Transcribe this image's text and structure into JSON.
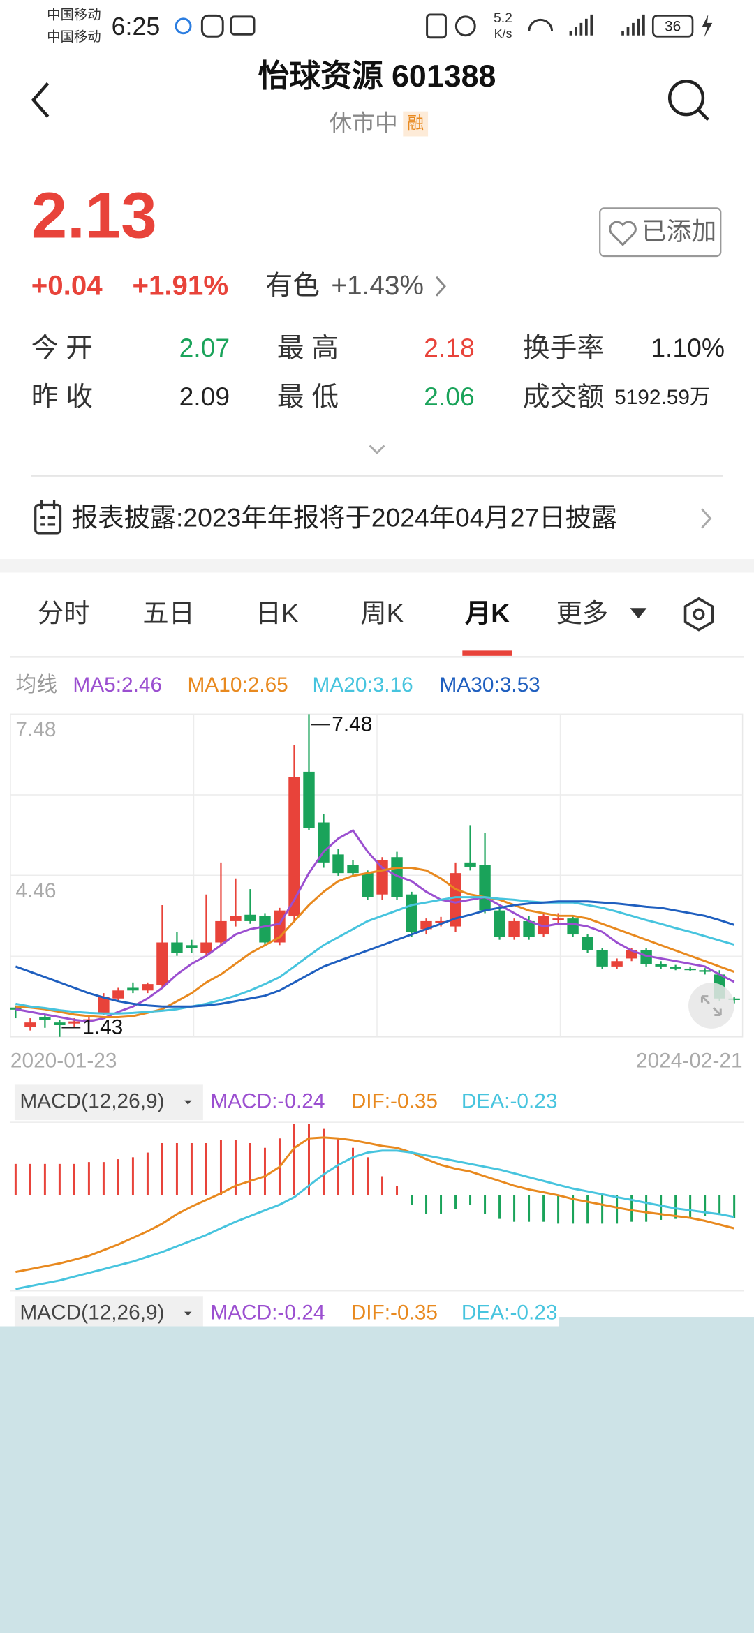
{
  "status_bar": {
    "carrier_1": "中国移动",
    "carrier_2": "中国移动",
    "time": "6:25",
    "speed": "5.2",
    "speed_unit": "K/s",
    "battery": "36"
  },
  "header": {
    "title": "怡球资源 601388",
    "status": "休市中",
    "badge": "融"
  },
  "quote": {
    "price": "2.13",
    "change": "+0.04",
    "change_pct": "+1.91%",
    "sector": "有色",
    "sector_change": "+1.43%",
    "watch_button": "已添加"
  },
  "stats": [
    [
      {
        "label": "今 开",
        "value": "2.07",
        "color": "#1aa35a"
      },
      {
        "label": "最 高",
        "value": "2.18",
        "color": "#e8433a"
      },
      {
        "label": "换手率",
        "value": "1.10%",
        "color": "#222222"
      }
    ],
    [
      {
        "label": "昨 收",
        "value": "2.09",
        "color": "#222222"
      },
      {
        "label": "最 低",
        "value": "2.06",
        "color": "#1aa35a"
      },
      {
        "label": "成交额",
        "value": "5192.59万",
        "color": "#222222"
      }
    ]
  ],
  "report": "报表披露:2023年年报将于2024年04月27日披露",
  "tabs": {
    "items": [
      "分时",
      "五日",
      "日K",
      "周K",
      "月K",
      "更多"
    ],
    "selected": 4
  },
  "chart_data": [
    {
      "type": "candlestick",
      "ma_label": "均线",
      "categories": [
        "2020-01-23",
        null,
        null,
        null,
        null,
        null,
        null,
        null,
        null,
        null,
        null,
        null,
        null,
        null,
        null,
        null,
        null,
        null,
        null,
        null,
        null,
        null,
        null,
        null,
        null,
        null,
        null,
        null,
        null,
        null,
        null,
        null,
        null,
        null,
        null,
        null,
        null,
        null,
        null,
        null,
        null,
        null,
        null,
        null,
        null,
        null,
        null,
        null,
        null,
        "2024-02-21"
      ],
      "open": [
        1.98,
        1.62,
        1.8,
        1.7,
        1.68,
        1.72,
        1.88,
        2.15,
        2.35,
        2.3,
        2.4,
        3.2,
        3.15,
        3.0,
        3.2,
        3.6,
        3.72,
        3.7,
        3.2,
        3.7,
        6.4,
        5.45,
        4.85,
        4.65,
        4.5,
        4.1,
        4.8,
        4.1,
        3.45,
        3.58,
        3.5,
        4.7,
        4.65,
        3.8,
        3.3,
        3.6,
        3.35,
        3.62,
        3.65,
        3.3,
        3.05,
        2.75,
        2.9,
        3.05,
        2.8,
        2.74,
        2.71,
        2.68,
        2.6,
        2.15
      ],
      "high": [
        2.02,
        1.78,
        1.84,
        1.75,
        1.78,
        1.8,
        2.25,
        2.35,
        2.45,
        2.45,
        3.9,
        3.4,
        3.25,
        4.1,
        4.7,
        4.4,
        4.2,
        3.75,
        3.85,
        6.9,
        7.48,
        5.6,
        4.95,
        4.75,
        4.55,
        4.8,
        4.9,
        4.15,
        3.65,
        3.68,
        4.7,
        5.4,
        5.25,
        3.9,
        3.65,
        3.7,
        3.75,
        3.75,
        3.7,
        3.35,
        3.1,
        2.9,
        3.1,
        3.1,
        2.85,
        2.78,
        2.75,
        2.72,
        2.68,
        2.18
      ],
      "low": [
        1.78,
        1.55,
        1.6,
        1.43,
        1.62,
        1.66,
        1.84,
        2.1,
        2.25,
        2.25,
        2.35,
        2.95,
        3.0,
        2.95,
        3.15,
        3.5,
        3.55,
        3.15,
        3.15,
        3.6,
        5.3,
        4.6,
        4.45,
        4.45,
        4.0,
        4.0,
        4.0,
        3.3,
        3.35,
        3.5,
        3.4,
        4.55,
        3.75,
        3.25,
        3.25,
        3.25,
        3.3,
        3.55,
        3.3,
        3.0,
        2.7,
        2.7,
        2.85,
        2.75,
        2.7,
        2.68,
        2.66,
        2.6,
        2.1,
        2.06
      ],
      "close": [
        1.94,
        1.7,
        1.75,
        1.65,
        1.72,
        1.76,
        2.18,
        2.3,
        2.3,
        2.42,
        3.2,
        3.0,
        3.1,
        3.2,
        3.6,
        3.7,
        3.6,
        3.2,
        3.8,
        6.3,
        5.35,
        4.7,
        4.5,
        4.5,
        4.05,
        4.75,
        4.05,
        3.4,
        3.6,
        3.6,
        4.5,
        4.62,
        3.8,
        3.3,
        3.6,
        3.3,
        3.7,
        3.65,
        3.35,
        3.05,
        2.75,
        2.85,
        3.05,
        2.8,
        2.75,
        2.72,
        2.69,
        2.65,
        2.15,
        2.13
      ],
      "up_color": "#e8433a",
      "down_color": "#1aa35a",
      "series": [
        {
          "name": "MA5:2.46",
          "color": "#9b4fd0",
          "values": [
            1.95,
            1.9,
            1.85,
            1.8,
            1.75,
            1.72,
            1.78,
            1.9,
            2.0,
            2.15,
            2.35,
            2.6,
            2.8,
            2.95,
            3.15,
            3.35,
            3.45,
            3.5,
            3.55,
            4.0,
            4.5,
            4.9,
            5.15,
            5.3,
            4.9,
            4.6,
            4.45,
            4.35,
            4.15,
            4.0,
            3.95,
            4.0,
            4.05,
            3.9,
            3.75,
            3.6,
            3.5,
            3.55,
            3.55,
            3.5,
            3.4,
            3.2,
            3.05,
            2.95,
            2.9,
            2.85,
            2.8,
            2.75,
            2.6,
            2.46
          ]
        },
        {
          "name": "MA10:2.65",
          "color": "#e8891f",
          "values": [
            2.0,
            1.98,
            1.95,
            1.9,
            1.85,
            1.82,
            1.8,
            1.8,
            1.82,
            1.88,
            1.95,
            2.1,
            2.25,
            2.45,
            2.6,
            2.8,
            3.0,
            3.15,
            3.3,
            3.6,
            3.9,
            4.15,
            4.35,
            4.45,
            4.5,
            4.55,
            4.6,
            4.6,
            4.55,
            4.4,
            4.2,
            4.1,
            4.05,
            4.0,
            3.9,
            3.8,
            3.75,
            3.7,
            3.7,
            3.65,
            3.55,
            3.45,
            3.35,
            3.25,
            3.15,
            3.05,
            2.95,
            2.85,
            2.75,
            2.65
          ]
        },
        {
          "name": "MA20:3.16",
          "color": "#47c4de",
          "values": [
            2.05,
            2.0,
            1.97,
            1.93,
            1.9,
            1.88,
            1.87,
            1.87,
            1.88,
            1.9,
            1.92,
            1.95,
            2.0,
            2.05,
            2.12,
            2.2,
            2.3,
            2.42,
            2.55,
            2.75,
            2.95,
            3.15,
            3.3,
            3.45,
            3.6,
            3.7,
            3.8,
            3.9,
            3.95,
            4.0,
            4.05,
            4.05,
            4.05,
            4.02,
            4.0,
            3.97,
            3.95,
            3.95,
            3.95,
            3.9,
            3.85,
            3.78,
            3.7,
            3.62,
            3.55,
            3.47,
            3.4,
            3.32,
            3.24,
            3.16
          ]
        },
        {
          "name": "MA30:3.53",
          "color": "#1f5fbf",
          "values": [
            2.75,
            2.65,
            2.55,
            2.45,
            2.35,
            2.25,
            2.17,
            2.1,
            2.05,
            2.02,
            2.0,
            2.0,
            2.0,
            2.02,
            2.05,
            2.1,
            2.15,
            2.2,
            2.3,
            2.45,
            2.6,
            2.75,
            2.85,
            2.95,
            3.05,
            3.15,
            3.25,
            3.35,
            3.45,
            3.55,
            3.65,
            3.72,
            3.8,
            3.85,
            3.9,
            3.93,
            3.95,
            3.97,
            3.97,
            3.97,
            3.95,
            3.93,
            3.9,
            3.87,
            3.85,
            3.8,
            3.75,
            3.7,
            3.62,
            3.53
          ]
        }
      ],
      "ylim": [
        1.43,
        7.48
      ],
      "yticks": [
        7.48,
        4.46
      ],
      "high_label": 7.48,
      "low_label": 1.43,
      "grid": true
    },
    {
      "type": "macd",
      "title": "MACD(12,26,9)",
      "histogram": {
        "name": "MACD:-0.24",
        "color": "#9b4fd0",
        "up_color": "#e8433a",
        "down_color": "#1aa35a",
        "values": [
          0.33,
          0.33,
          0.33,
          0.33,
          0.33,
          0.35,
          0.35,
          0.38,
          0.4,
          0.45,
          0.55,
          0.55,
          0.55,
          0.55,
          0.58,
          0.58,
          0.55,
          0.5,
          0.6,
          0.75,
          0.75,
          0.7,
          0.6,
          0.5,
          0.4,
          0.2,
          0.1,
          -0.1,
          -0.2,
          -0.2,
          -0.15,
          -0.1,
          -0.2,
          -0.25,
          -0.28,
          -0.28,
          -0.28,
          -0.3,
          -0.3,
          -0.3,
          -0.3,
          -0.3,
          -0.28,
          -0.28,
          -0.26,
          -0.25,
          -0.24,
          -0.22,
          -0.2,
          -0.24
        ]
      },
      "series": [
        {
          "name": "DIF:-0.35",
          "color": "#e8891f",
          "values": [
            -0.81,
            -0.78,
            -0.75,
            -0.72,
            -0.68,
            -0.64,
            -0.58,
            -0.52,
            -0.45,
            -0.38,
            -0.3,
            -0.2,
            -0.12,
            -0.05,
            0.02,
            0.1,
            0.15,
            0.2,
            0.3,
            0.5,
            0.6,
            0.61,
            0.6,
            0.58,
            0.55,
            0.52,
            0.5,
            0.45,
            0.38,
            0.32,
            0.28,
            0.25,
            0.2,
            0.15,
            0.1,
            0.06,
            0.03,
            0.0,
            -0.04,
            -0.07,
            -0.1,
            -0.13,
            -0.16,
            -0.18,
            -0.2,
            -0.22,
            -0.24,
            -0.27,
            -0.31,
            -0.35
          ]
        },
        {
          "name": "DEA:-0.23",
          "color": "#47c4de",
          "values": [
            -0.99,
            -0.96,
            -0.93,
            -0.9,
            -0.86,
            -0.82,
            -0.78,
            -0.74,
            -0.7,
            -0.65,
            -0.6,
            -0.54,
            -0.48,
            -0.42,
            -0.35,
            -0.28,
            -0.22,
            -0.16,
            -0.1,
            -0.02,
            0.1,
            0.22,
            0.32,
            0.4,
            0.45,
            0.47,
            0.47,
            0.45,
            0.42,
            0.39,
            0.36,
            0.33,
            0.3,
            0.27,
            0.23,
            0.19,
            0.15,
            0.11,
            0.07,
            0.04,
            0.01,
            -0.02,
            -0.05,
            -0.08,
            -0.11,
            -0.14,
            -0.16,
            -0.18,
            -0.2,
            -0.23
          ]
        }
      ],
      "ylim": [
        -1.01,
        0.77
      ]
    }
  ]
}
